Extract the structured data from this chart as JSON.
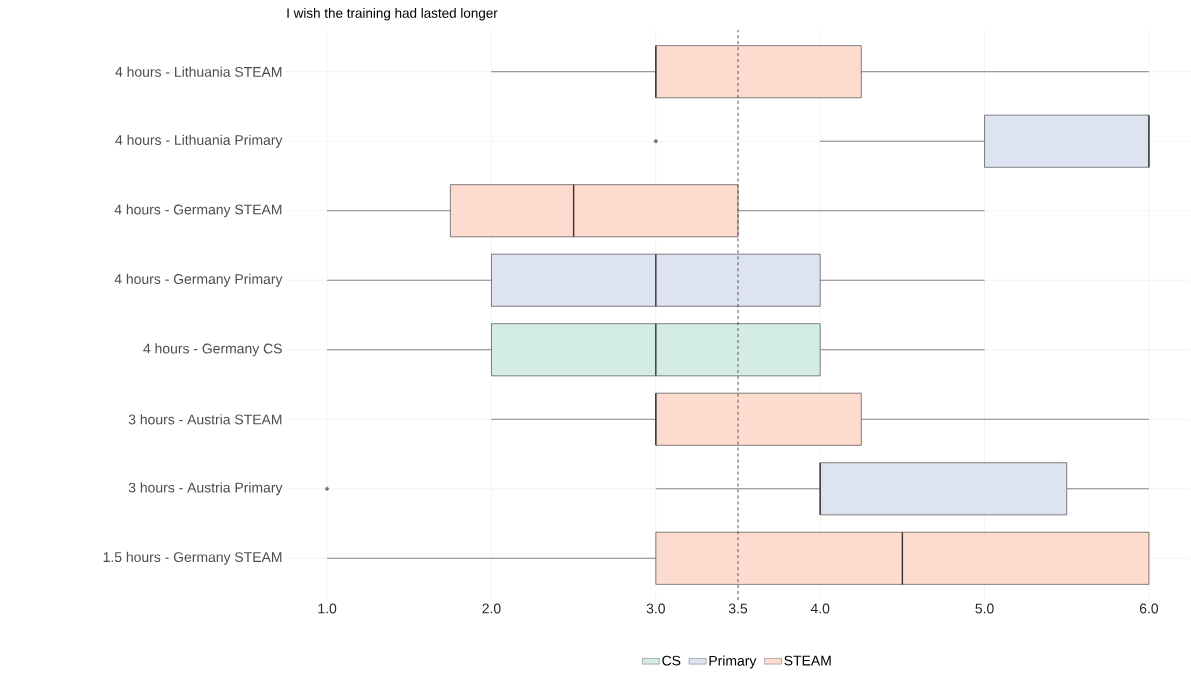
{
  "chart_data": {
    "type": "box",
    "orientation": "horizontal",
    "title": "I wish the training had lasted longer",
    "categories": [
      "4 hours - Lithuania STEAM",
      "4 hours - Lithuania Primary",
      "4 hours - Germany STEAM",
      "4 hours - Germany Primary",
      "4 hours - Germany CS",
      "3 hours - Austria STEAM",
      "3 hours - Austria Primary",
      "1.5 hours - Germany STEAM"
    ],
    "xlim": [
      0.75,
      6.25
    ],
    "xticks": [
      {
        "value": 1,
        "label": "1.0"
      },
      {
        "value": 2,
        "label": "2.0"
      },
      {
        "value": 3,
        "label": "3.0"
      },
      {
        "value": 3.5,
        "label": "3.5"
      },
      {
        "value": 4,
        "label": "4.0"
      },
      {
        "value": 5,
        "label": "5.0"
      },
      {
        "value": 6,
        "label": "6.0"
      }
    ],
    "grid": true,
    "legend": "bottom",
    "ref_lines": [
      {
        "axis": "x",
        "value": 3.5,
        "line_style": "dashed",
        "color": "#333333"
      }
    ],
    "series": [
      {
        "name": "CS",
        "color": "#d4ede4",
        "boxes": [
          null,
          null,
          null,
          null,
          {
            "low": 1,
            "q1": 2,
            "median": 3,
            "q3": 4,
            "high": 5
          },
          null,
          null,
          null
        ]
      },
      {
        "name": "Primary",
        "color": "#dde3f0",
        "boxes": [
          null,
          {
            "low": 4,
            "q1": 5,
            "median": 6,
            "q3": 6,
            "high": 6,
            "outliers": [
              3
            ]
          },
          null,
          {
            "low": 1,
            "q1": 2,
            "median": 3,
            "q3": 4,
            "high": 5
          },
          null,
          null,
          {
            "low": 3,
            "q1": 4,
            "median": 4,
            "q3": 5.5,
            "high": 6,
            "outliers": [
              1
            ]
          },
          null
        ]
      },
      {
        "name": "STEAM",
        "color": "#fddccf",
        "boxes": [
          {
            "low": 2,
            "q1": 3,
            "median": 3,
            "q3": 4.25,
            "high": 6
          },
          null,
          {
            "low": 1,
            "q1": 1.75,
            "median": 2.5,
            "q3": 3.5,
            "high": 5
          },
          null,
          null,
          {
            "low": 2,
            "q1": 3,
            "median": 3,
            "q3": 4.25,
            "high": 6
          },
          null,
          {
            "low": 1,
            "q1": 3,
            "median": 4.5,
            "q3": 6,
            "high": 6
          }
        ]
      }
    ]
  }
}
